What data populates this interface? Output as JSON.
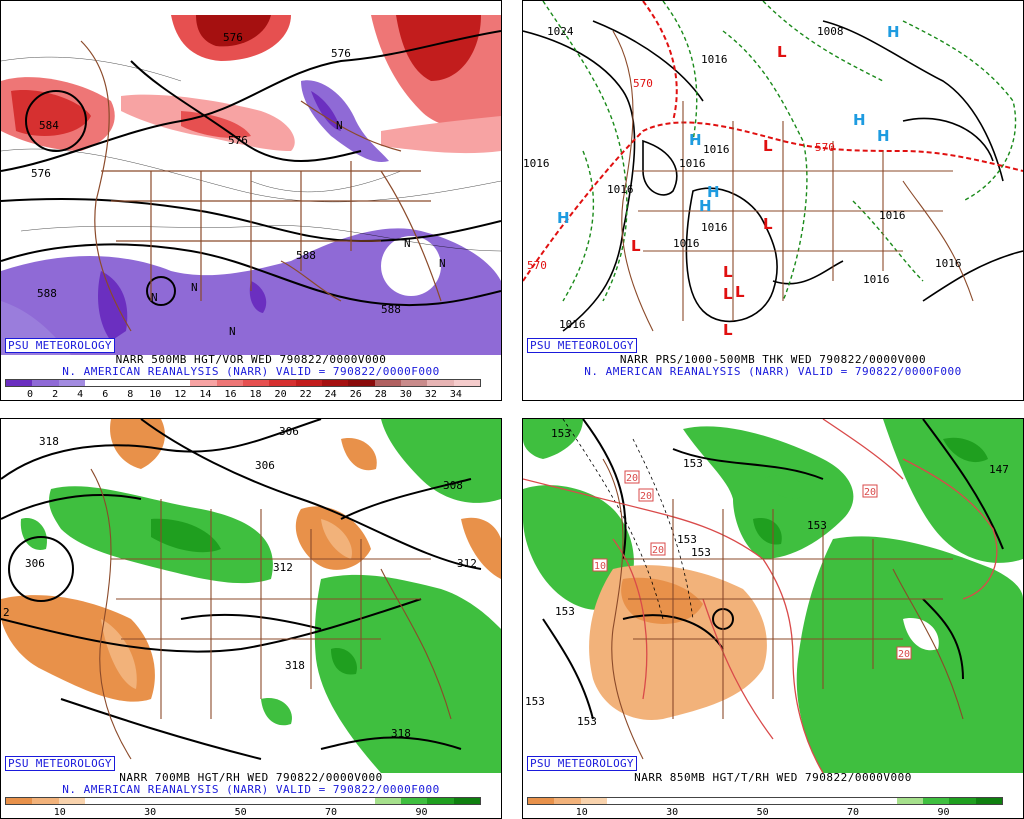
{
  "panels": [
    {
      "id": "p1",
      "badge": "PSU METEOROLOGY",
      "line1": "NARR 500MB HGT/VOR WED 790822/0000V000",
      "line2": "N. AMERICAN REANALYSIS (NARR) VALID = 790822/0000F000",
      "colorbar": {
        "colors": [
          "#6b2fc0",
          "#8f6ad6",
          "#a28be0",
          "#ffffff",
          "#ffffff",
          "#ffffff",
          "#ffffff",
          "#f7a3a3",
          "#ee7676",
          "#e65050",
          "#d63030",
          "#c21d1d",
          "#a51010",
          "#8a0b0b",
          "#b06060",
          "#c98b8b",
          "#e7b4b4",
          "#f5cccc"
        ],
        "ticks": [
          "0",
          "2",
          "4",
          "6",
          "8",
          "10",
          "12",
          "14",
          "16",
          "18",
          "20",
          "22",
          "24",
          "26",
          "28",
          "30",
          "32",
          "34"
        ]
      },
      "contour_labels": [
        "576",
        "576",
        "576",
        "576",
        "588",
        "588",
        "588",
        "584"
      ],
      "region_labels": [
        "N",
        "N",
        "N",
        "N",
        "N",
        "N"
      ]
    },
    {
      "id": "p2",
      "badge": "PSU METEOROLOGY",
      "line1": "NARR PRS/1000-500MB THK WED 790822/0000V000",
      "line2": "N. AMERICAN REANALYSIS (NARR) VALID = 790822/0000F000",
      "isobar_labels": [
        "1024",
        "1008",
        "1016",
        "1016",
        "1016",
        "1016",
        "1016",
        "1016",
        "1016",
        "1016",
        "1016",
        "1016",
        "1016"
      ],
      "thickness_labels": [
        "570",
        "570",
        "570"
      ],
      "highs": [
        "H",
        "H",
        "H",
        "H",
        "H",
        "H",
        "H"
      ],
      "lows": [
        "L",
        "L",
        "L",
        "L",
        "L",
        "L",
        "L",
        "L"
      ],
      "colors": {
        "high": "#1e9be0",
        "low": "#e01010"
      }
    },
    {
      "id": "p3",
      "badge": "PSU METEOROLOGY",
      "line1": "NARR 700MB HGT/RH WED 790822/0000V000",
      "line2": "N. AMERICAN REANALYSIS (NARR) VALID = 790822/0000F000",
      "colorbar": {
        "colors": [
          "#e8914a",
          "#f2b27a",
          "#f9d3ad",
          "#ffffff",
          "#ffffff",
          "#ffffff",
          "#ffffff",
          "#ffffff",
          "#ffffff",
          "#ffffff",
          "#ffffff",
          "#ffffff",
          "#ffffff",
          "#ffffff",
          "#a6e08c",
          "#3fbf3f",
          "#1f9f1f",
          "#0f7f0f"
        ],
        "ticks": [
          "10",
          "30",
          "50",
          "70",
          "90"
        ]
      },
      "contour_labels": [
        "318",
        "306",
        "306",
        "306",
        "308",
        "312",
        "312",
        "318",
        "318",
        "2"
      ]
    },
    {
      "id": "p4",
      "badge": "PSU METEOROLOGY",
      "line1": "NARR 850MB HGT/T/RH WED 790822/0000V000",
      "line2": "",
      "colorbar": {
        "colors": [
          "#e8914a",
          "#f2b27a",
          "#f9d3ad",
          "#ffffff",
          "#ffffff",
          "#ffffff",
          "#ffffff",
          "#ffffff",
          "#ffffff",
          "#ffffff",
          "#ffffff",
          "#ffffff",
          "#ffffff",
          "#ffffff",
          "#a6e08c",
          "#3fbf3f",
          "#1f9f1f",
          "#0f7f0f"
        ],
        "ticks": [
          "10",
          "30",
          "50",
          "70",
          "90"
        ]
      },
      "contour_labels": [
        "153",
        "153",
        "153",
        "153",
        "153",
        "153",
        "153",
        "153",
        "147"
      ],
      "temp_labels": [
        "20",
        "20",
        "20",
        "10",
        "20",
        "20"
      ]
    }
  ]
}
